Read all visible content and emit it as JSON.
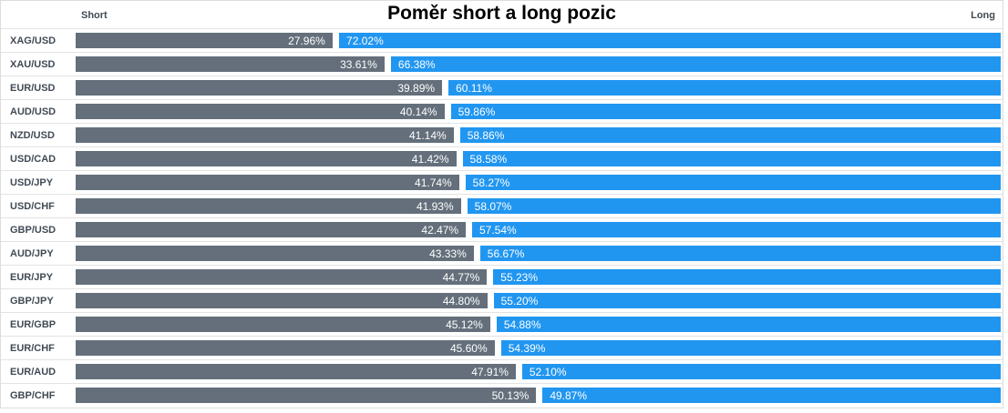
{
  "title": "Poměr short a long pozic",
  "header": {
    "short_label": "Short",
    "long_label": "Long"
  },
  "colors": {
    "short_bar": "#646f7b",
    "long_bar": "#2196f0",
    "bar_text": "#ffffff",
    "row_label_text": "#404a54",
    "row_border": "#e3e3e3",
    "panel_border": "#dcdcdc",
    "background": "#ffffff"
  },
  "chart_data": {
    "type": "bar",
    "orientation": "horizontal",
    "title": "Poměr short a long pozic",
    "value_unit": "%",
    "xlim": [
      0,
      100
    ],
    "grid": false,
    "legend_position": "top-axis-labels",
    "categories": [
      "XAG/USD",
      "XAU/USD",
      "EUR/USD",
      "AUD/USD",
      "NZD/USD",
      "USD/CAD",
      "USD/JPY",
      "USD/CHF",
      "GBP/USD",
      "AUD/JPY",
      "EUR/JPY",
      "GBP/JPY",
      "EUR/GBP",
      "EUR/CHF",
      "EUR/AUD",
      "GBP/CHF"
    ],
    "series": [
      {
        "name": "Short",
        "color": "#646f7b",
        "values": [
          27.96,
          33.61,
          39.89,
          40.14,
          41.14,
          41.42,
          41.74,
          41.93,
          42.47,
          43.33,
          44.77,
          44.8,
          45.12,
          45.6,
          47.91,
          50.13
        ]
      },
      {
        "name": "Long",
        "color": "#2196f0",
        "values": [
          72.02,
          66.38,
          60.11,
          59.86,
          58.86,
          58.58,
          58.27,
          58.07,
          57.54,
          56.67,
          55.23,
          55.2,
          54.88,
          54.39,
          52.1,
          49.87
        ]
      }
    ]
  }
}
